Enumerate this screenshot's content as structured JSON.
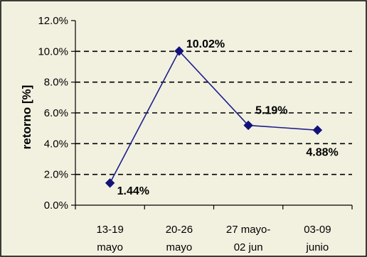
{
  "chart_data": {
    "type": "line",
    "title": "",
    "xlabel": "",
    "ylabel": "retorno [%]",
    "categories": [
      [
        "13-19",
        "mayo"
      ],
      [
        "20-26",
        "mayo"
      ],
      [
        "27 mayo-",
        "02 jun"
      ],
      [
        "03-09",
        "junio"
      ]
    ],
    "series": [
      {
        "values": [
          1.44,
          10.02,
          5.19,
          4.88
        ],
        "labels": [
          "1.44%",
          "10.02%",
          "5.19%",
          "4.88%"
        ]
      }
    ],
    "ylim": [
      0,
      12
    ],
    "yticks": [
      "0.0%",
      "2.0%",
      "4.0%",
      "6.0%",
      "8.0%",
      "10.0%",
      "12.0%"
    ],
    "grid": true,
    "legend": "none",
    "colors": {
      "background": "#f2f1e0",
      "line": "#1e1e8c",
      "marker": "#12127a",
      "grid": "#000000"
    }
  }
}
